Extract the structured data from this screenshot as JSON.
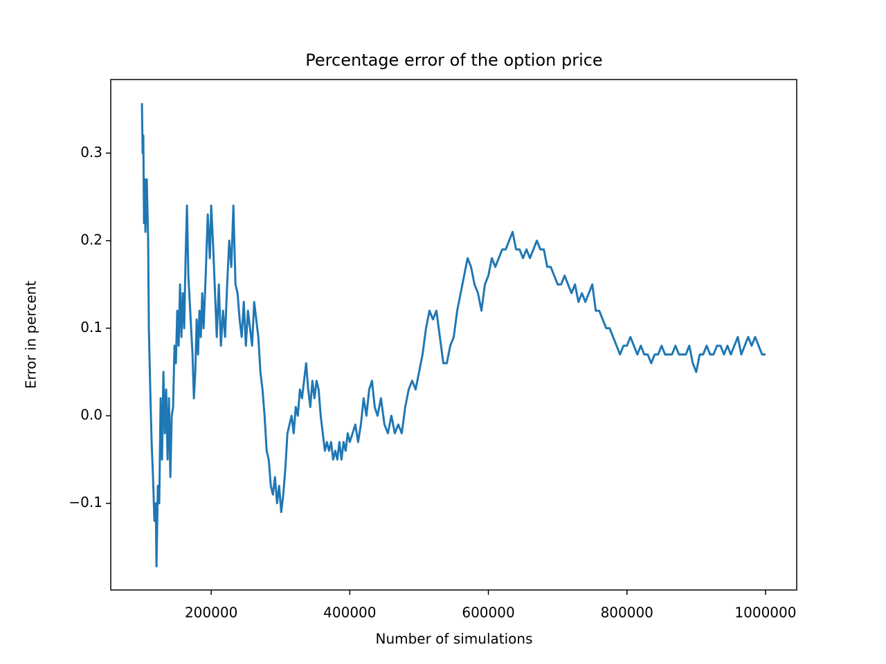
{
  "chart_data": {
    "type": "line",
    "title": "Percentage error of the option price",
    "x_label": "Number of simulations",
    "y_label": "Error in percent",
    "xlim": [
      55000,
      1045000
    ],
    "ylim": [
      -0.199,
      0.384
    ],
    "xticks": [
      200000,
      400000,
      600000,
      800000,
      1000000
    ],
    "yticks": [
      {
        "value": -0.1,
        "label": "−0.1"
      },
      {
        "value": 0,
        "label": "0.0"
      },
      0.1,
      0.2,
      0.3
    ],
    "x": [
      100000,
      101000,
      102000,
      103000,
      104000,
      105000,
      107000,
      109000,
      110000,
      112000,
      114000,
      116000,
      118000,
      120000,
      121000,
      123000,
      125000,
      127000,
      129000,
      131000,
      133000,
      135000,
      137000,
      139000,
      141000,
      143000,
      145000,
      147000,
      149000,
      151000,
      153000,
      155000,
      157000,
      159000,
      161000,
      163000,
      165000,
      167000,
      169000,
      171000,
      173000,
      175000,
      177000,
      179000,
      181000,
      183000,
      185000,
      187000,
      189000,
      192000,
      195000,
      198000,
      200000,
      203000,
      206000,
      208000,
      211000,
      214000,
      217000,
      220000,
      223000,
      226000,
      229000,
      232000,
      235000,
      238000,
      241000,
      244000,
      247000,
      250000,
      253000,
      256000,
      259000,
      262000,
      265000,
      268000,
      271000,
      274000,
      277000,
      280000,
      283000,
      286000,
      289000,
      292000,
      295000,
      298000,
      301000,
      304000,
      307000,
      310000,
      313000,
      316000,
      319000,
      322000,
      325000,
      328000,
      331000,
      334000,
      337000,
      340000,
      343000,
      346000,
      349000,
      352000,
      355000,
      358000,
      361000,
      364000,
      367000,
      370000,
      373000,
      376000,
      379000,
      382000,
      385000,
      388000,
      391000,
      394000,
      397000,
      400000,
      404000,
      408000,
      412000,
      416000,
      420000,
      424000,
      428000,
      432000,
      436000,
      440000,
      445000,
      450000,
      455000,
      460000,
      465000,
      470000,
      475000,
      480000,
      485000,
      490000,
      495000,
      500000,
      505000,
      510000,
      515000,
      520000,
      525000,
      530000,
      535000,
      540000,
      545000,
      550000,
      555000,
      560000,
      565000,
      570000,
      575000,
      580000,
      585000,
      590000,
      595000,
      600000,
      605000,
      610000,
      615000,
      620000,
      625000,
      630000,
      635000,
      640000,
      645000,
      650000,
      655000,
      660000,
      665000,
      670000,
      675000,
      680000,
      685000,
      690000,
      695000,
      700000,
      705000,
      710000,
      715000,
      720000,
      725000,
      730000,
      735000,
      740000,
      745000,
      750000,
      755000,
      760000,
      765000,
      770000,
      775000,
      780000,
      785000,
      790000,
      795000,
      800000,
      805000,
      810000,
      815000,
      820000,
      825000,
      830000,
      835000,
      840000,
      845000,
      850000,
      855000,
      860000,
      865000,
      870000,
      875000,
      880000,
      885000,
      890000,
      895000,
      900000,
      905000,
      910000,
      915000,
      920000,
      925000,
      930000,
      935000,
      940000,
      945000,
      950000,
      955000,
      960000,
      965000,
      970000,
      975000,
      980000,
      985000,
      990000,
      995000,
      1000000
    ],
    "series": [
      {
        "color": "#1f77b4",
        "values": [
          0.357,
          0.3,
          0.32,
          0.22,
          0.27,
          0.21,
          0.27,
          0.2,
          0.1,
          0.03,
          -0.03,
          -0.07,
          -0.12,
          -0.1,
          -0.172,
          -0.08,
          -0.1,
          0.02,
          -0.05,
          0.05,
          -0.02,
          0.03,
          -0.05,
          0.02,
          -0.07,
          0.0,
          0.01,
          0.08,
          0.06,
          0.12,
          0.08,
          0.15,
          0.09,
          0.14,
          0.1,
          0.18,
          0.24,
          0.16,
          0.13,
          0.1,
          0.07,
          0.02,
          0.05,
          0.11,
          0.07,
          0.12,
          0.09,
          0.14,
          0.1,
          0.16,
          0.23,
          0.18,
          0.24,
          0.19,
          0.13,
          0.09,
          0.15,
          0.08,
          0.12,
          0.09,
          0.15,
          0.2,
          0.17,
          0.24,
          0.15,
          0.14,
          0.11,
          0.09,
          0.13,
          0.08,
          0.12,
          0.1,
          0.08,
          0.13,
          0.11,
          0.09,
          0.05,
          0.03,
          0.0,
          -0.04,
          -0.05,
          -0.08,
          -0.09,
          -0.07,
          -0.1,
          -0.08,
          -0.11,
          -0.09,
          -0.06,
          -0.02,
          -0.01,
          0.0,
          -0.02,
          0.01,
          0.0,
          0.03,
          0.02,
          0.04,
          0.06,
          0.03,
          0.01,
          0.04,
          0.02,
          0.04,
          0.03,
          0.0,
          -0.02,
          -0.04,
          -0.03,
          -0.04,
          -0.03,
          -0.05,
          -0.04,
          -0.05,
          -0.03,
          -0.05,
          -0.03,
          -0.04,
          -0.02,
          -0.03,
          -0.02,
          -0.01,
          -0.03,
          -0.01,
          0.02,
          0.0,
          0.03,
          0.04,
          0.01,
          0.0,
          0.02,
          -0.01,
          -0.02,
          0.0,
          -0.02,
          -0.01,
          -0.02,
          0.01,
          0.03,
          0.04,
          0.03,
          0.05,
          0.07,
          0.1,
          0.12,
          0.11,
          0.12,
          0.09,
          0.06,
          0.06,
          0.08,
          0.09,
          0.12,
          0.14,
          0.16,
          0.18,
          0.17,
          0.15,
          0.14,
          0.12,
          0.15,
          0.16,
          0.18,
          0.17,
          0.18,
          0.19,
          0.19,
          0.2,
          0.21,
          0.19,
          0.19,
          0.18,
          0.19,
          0.18,
          0.19,
          0.2,
          0.19,
          0.19,
          0.17,
          0.17,
          0.16,
          0.15,
          0.15,
          0.16,
          0.15,
          0.14,
          0.15,
          0.13,
          0.14,
          0.13,
          0.14,
          0.15,
          0.12,
          0.12,
          0.11,
          0.1,
          0.1,
          0.09,
          0.08,
          0.07,
          0.08,
          0.08,
          0.09,
          0.08,
          0.07,
          0.08,
          0.07,
          0.07,
          0.06,
          0.07,
          0.07,
          0.08,
          0.07,
          0.07,
          0.07,
          0.08,
          0.07,
          0.07,
          0.07,
          0.08,
          0.06,
          0.05,
          0.07,
          0.07,
          0.08,
          0.07,
          0.07,
          0.08,
          0.08,
          0.07,
          0.08,
          0.07,
          0.08,
          0.09,
          0.07,
          0.08,
          0.09,
          0.08,
          0.09,
          0.08,
          0.07,
          0.07
        ]
      }
    ]
  }
}
